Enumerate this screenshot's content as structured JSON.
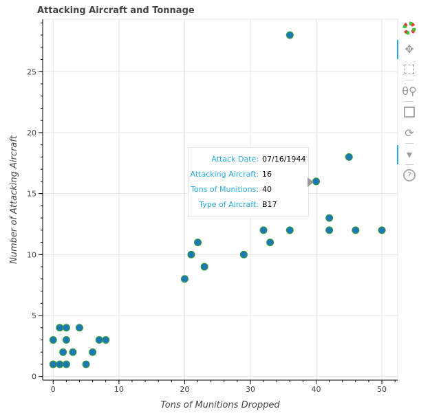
{
  "chart_data": {
    "type": "scatter",
    "title": "Attacking Aircraft and Tonnage",
    "xlabel": "Tons of Munitions Dropped",
    "ylabel": "Number of Attacking Aircraft",
    "xlim": [
      -1.6,
      52.4
    ],
    "ylim": [
      -0.3,
      29.3
    ],
    "xticks": [
      0,
      10,
      20,
      30,
      40,
      50
    ],
    "yticks": [
      0,
      5,
      10,
      15,
      20,
      25
    ],
    "grid": true,
    "marker_fill": "#1f77b4",
    "marker_line": "#2ca02c",
    "points": [
      {
        "x": 1,
        "y": 4
      },
      {
        "x": 2,
        "y": 4
      },
      {
        "x": 4,
        "y": 4
      },
      {
        "x": 0,
        "y": 3
      },
      {
        "x": 2,
        "y": 3
      },
      {
        "x": 7,
        "y": 3
      },
      {
        "x": 8,
        "y": 3
      },
      {
        "x": 1.5,
        "y": 2
      },
      {
        "x": 3,
        "y": 2
      },
      {
        "x": 6,
        "y": 2
      },
      {
        "x": 0,
        "y": 1
      },
      {
        "x": 1,
        "y": 1
      },
      {
        "x": 2,
        "y": 1
      },
      {
        "x": 5,
        "y": 1
      },
      {
        "x": 20,
        "y": 8
      },
      {
        "x": 21,
        "y": 10
      },
      {
        "x": 22,
        "y": 11
      },
      {
        "x": 23,
        "y": 9
      },
      {
        "x": 29,
        "y": 10
      },
      {
        "x": 32,
        "y": 12
      },
      {
        "x": 33,
        "y": 11
      },
      {
        "x": 36,
        "y": 12
      },
      {
        "x": 36,
        "y": 28
      },
      {
        "x": 40,
        "y": 16
      },
      {
        "x": 42,
        "y": 13
      },
      {
        "x": 42,
        "y": 12
      },
      {
        "x": 45,
        "y": 18
      },
      {
        "x": 46,
        "y": 12
      },
      {
        "x": 50,
        "y": 12
      }
    ]
  },
  "tooltip": {
    "rows": [
      {
        "key": "Attack Date:",
        "value": "07/16/1944"
      },
      {
        "key": "Attacking Aircraft:",
        "value": "16"
      },
      {
        "key": "Tons of Munitions:",
        "value": "40"
      },
      {
        "key": "Type of Aircraft:",
        "value": "B17"
      }
    ]
  },
  "toolbar": {
    "tools": [
      "bokeh-logo",
      "pan-icon",
      "box-zoom-icon",
      "wheel-zoom-icon",
      "save-icon",
      "reset-icon",
      "hover-icon",
      "help-icon"
    ]
  }
}
